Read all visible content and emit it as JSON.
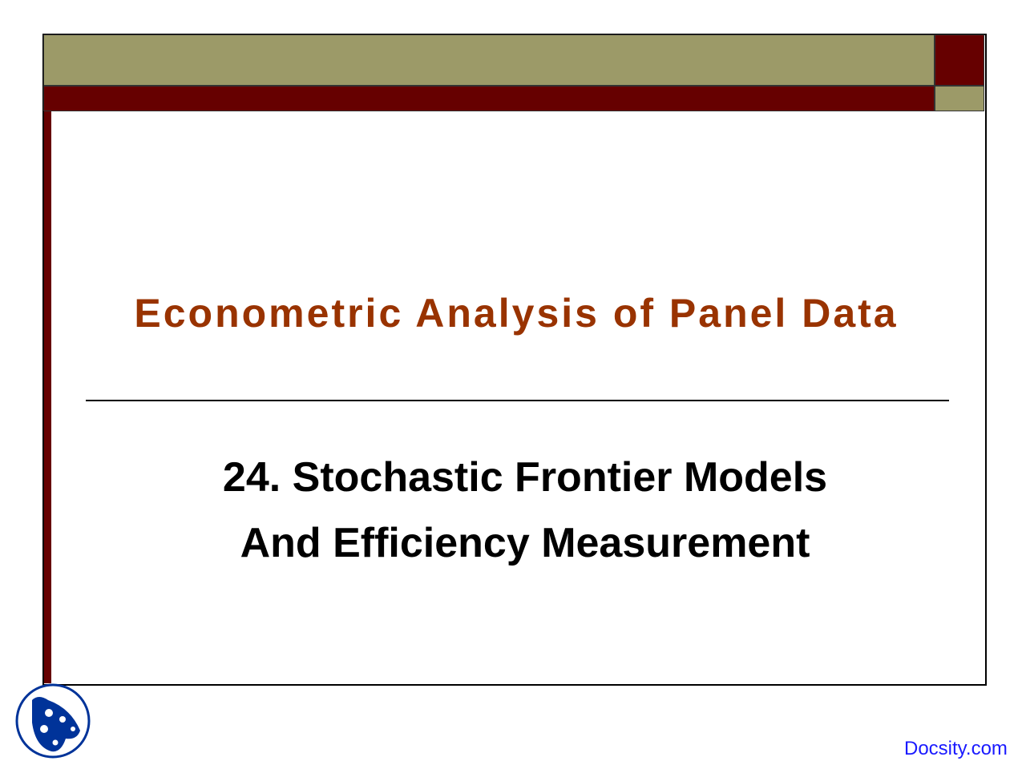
{
  "slide": {
    "title": "Econometric Analysis of Panel Data",
    "subtitle_line1": "24. Stochastic Frontier Models",
    "subtitle_line2": "And Efficiency Measurement"
  },
  "footer": {
    "watermark": "Docsity.com",
    "logo_icon": "docsity-logo-icon"
  },
  "colors": {
    "olive": "#9c9a68",
    "maroon": "#660000",
    "title": "#993300",
    "watermark": "#1a1aff",
    "logo": "#003399"
  }
}
